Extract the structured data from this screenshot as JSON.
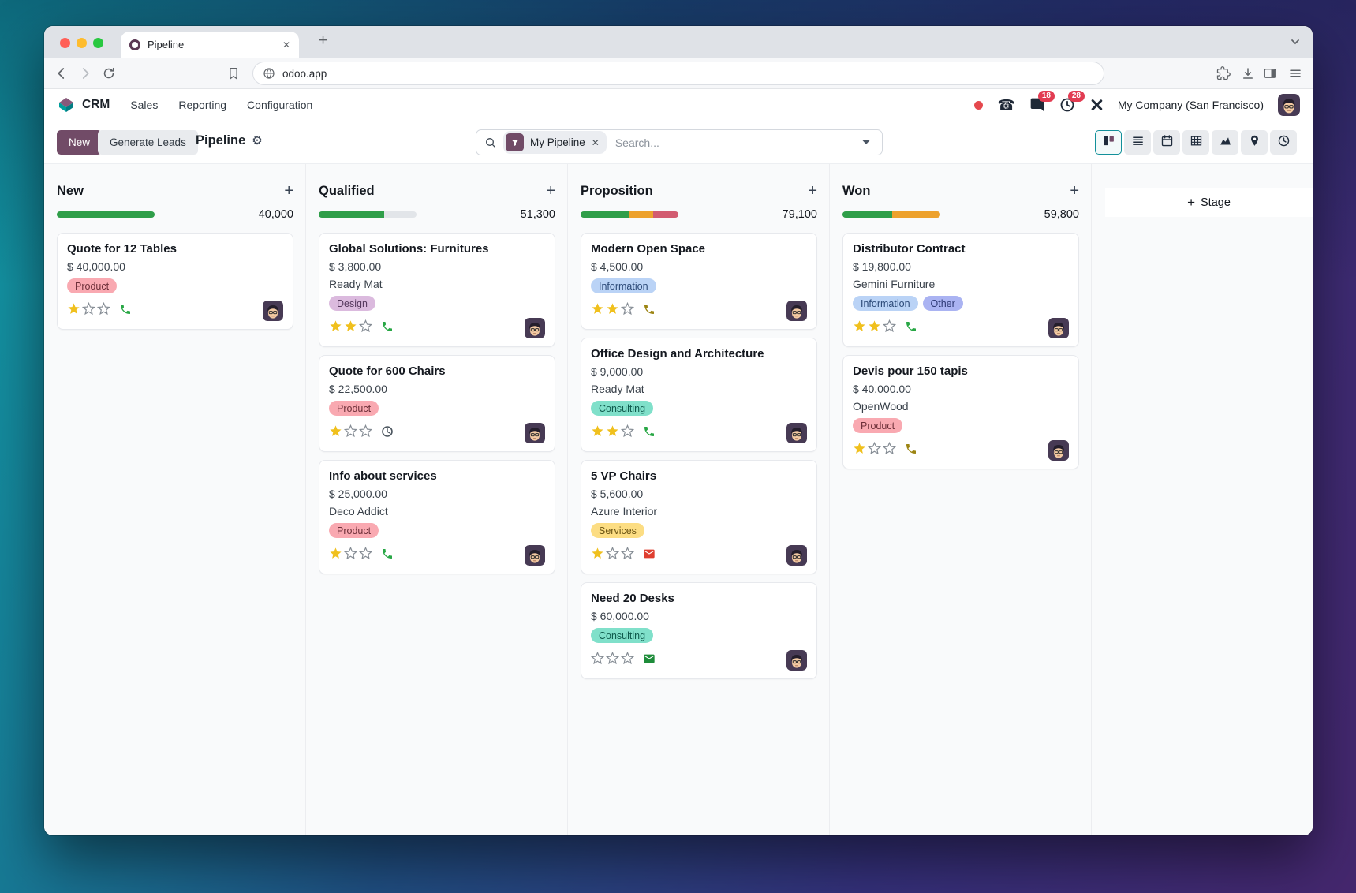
{
  "browser": {
    "tab_title": "Pipeline",
    "url": "odoo.app"
  },
  "icons": {
    "close": "✕",
    "plus": "+",
    "phone_glyph": "☎",
    "gear": "⚙"
  },
  "navbar": {
    "app_name": "CRM",
    "menus": [
      "Sales",
      "Reporting",
      "Configuration"
    ],
    "message_badge": "18",
    "activity_badge": "28",
    "company": "My Company (San Francisco)"
  },
  "control_panel": {
    "new_button": "New",
    "generate_leads_button": "Generate Leads",
    "title": "Pipeline",
    "search": {
      "facet": "My Pipeline",
      "placeholder": "Search..."
    },
    "view_switcher": [
      {
        "name": "kanban",
        "active": true
      },
      {
        "name": "list",
        "active": false
      },
      {
        "name": "calendar",
        "active": false
      },
      {
        "name": "pivot",
        "active": false
      },
      {
        "name": "graph",
        "active": false
      },
      {
        "name": "map",
        "active": false
      },
      {
        "name": "activity",
        "active": false
      }
    ]
  },
  "board": {
    "add_stage_label": "Stage",
    "colors": {
      "green": "#2f9e49",
      "orange": "#eda12c",
      "red": "#d25b70",
      "track": "#e2e5e9",
      "accent": "#714b67"
    },
    "columns": [
      {
        "name": "New",
        "total": "40,000",
        "progress": [
          {
            "color": "green",
            "pct": 100
          }
        ],
        "cards": [
          {
            "title": "Quote for 12 Tables",
            "amount": "$ 40,000.00",
            "tags": [
              {
                "label": "Product",
                "color": "product"
              }
            ],
            "stars": 1,
            "activity": {
              "icon": "phone",
              "color": "#28a745"
            }
          }
        ]
      },
      {
        "name": "Qualified",
        "total": "51,300",
        "progress": [
          {
            "color": "green",
            "pct": 67
          }
        ],
        "cards": [
          {
            "title": "Global Solutions: Furnitures",
            "amount": "$ 3,800.00",
            "partner": "Ready Mat",
            "tags": [
              {
                "label": "Design",
                "color": "design"
              }
            ],
            "stars": 2,
            "activity": {
              "icon": "phone",
              "color": "#28a745"
            }
          },
          {
            "title": "Quote for 600 Chairs",
            "amount": "$ 22,500.00",
            "tags": [
              {
                "label": "Product",
                "color": "product"
              }
            ],
            "stars": 1,
            "activity": {
              "icon": "clock",
              "color": "#4c565f"
            }
          },
          {
            "title": "Info about services",
            "amount": "$ 25,000.00",
            "partner": "Deco Addict",
            "tags": [
              {
                "label": "Product",
                "color": "product"
              }
            ],
            "stars": 1,
            "activity": {
              "icon": "phone",
              "color": "#28a745"
            }
          }
        ]
      },
      {
        "name": "Proposition",
        "total": "79,100",
        "progress": [
          {
            "color": "green",
            "pct": 50
          },
          {
            "color": "orange",
            "pct": 24
          },
          {
            "color": "red",
            "pct": 26
          }
        ],
        "cards": [
          {
            "title": "Modern Open Space",
            "amount": "$ 4,500.00",
            "tags": [
              {
                "label": "Information",
                "color": "information"
              }
            ],
            "stars": 2,
            "activity": {
              "icon": "phone",
              "color": "#9c8412"
            }
          },
          {
            "title": "Office Design and Architecture",
            "amount": "$ 9,000.00",
            "partner": "Ready Mat",
            "tags": [
              {
                "label": "Consulting",
                "color": "consulting"
              }
            ],
            "stars": 2,
            "activity": {
              "icon": "phone",
              "color": "#28a745"
            }
          },
          {
            "title": "5 VP Chairs",
            "amount": "$ 5,600.00",
            "partner": "Azure Interior",
            "tags": [
              {
                "label": "Services",
                "color": "services"
              }
            ],
            "stars": 1,
            "activity": {
              "icon": "envelope",
              "color": "#df3e2f"
            }
          },
          {
            "title": "Need 20 Desks",
            "amount": "$ 60,000.00",
            "tags": [
              {
                "label": "Consulting",
                "color": "consulting"
              }
            ],
            "stars": 0,
            "activity": {
              "icon": "envelope",
              "color": "#1e8c3a"
            }
          }
        ]
      },
      {
        "name": "Won",
        "total": "59,800",
        "progress": [
          {
            "color": "green",
            "pct": 51
          },
          {
            "color": "orange",
            "pct": 49
          }
        ],
        "cards": [
          {
            "title": "Distributor Contract",
            "amount": "$ 19,800.00",
            "partner": "Gemini Furniture",
            "tags": [
              {
                "label": "Information",
                "color": "information"
              },
              {
                "label": "Other",
                "color": "other"
              }
            ],
            "stars": 2,
            "activity": {
              "icon": "phone",
              "color": "#28a745"
            }
          },
          {
            "title": "Devis pour 150 tapis",
            "amount": "$ 40,000.00",
            "partner": "OpenWood",
            "tags": [
              {
                "label": "Product",
                "color": "product"
              }
            ],
            "stars": 1,
            "activity": {
              "icon": "phone",
              "color": "#9c8412"
            }
          }
        ]
      }
    ]
  }
}
